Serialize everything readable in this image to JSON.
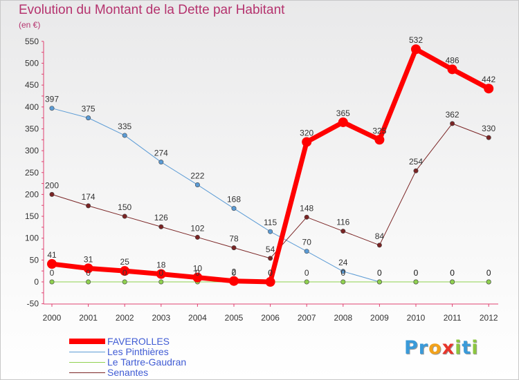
{
  "title": "Evolution du Montant de la Dette par Habitant",
  "unit_label": "(en €)",
  "logo": {
    "text": "Proxiti",
    "letters": [
      {
        "ch": "P",
        "color": "#3a9ad9"
      },
      {
        "ch": "r",
        "color": "#3a9ad9"
      },
      {
        "ch": "o",
        "color": "#f2a21b"
      },
      {
        "ch": "x",
        "color": "#e8352b"
      },
      {
        "ch": "i",
        "color": "#8cc63f"
      },
      {
        "ch": "t",
        "color": "#3a9ad9"
      },
      {
        "ch": "i",
        "color": "#8cc63f"
      }
    ]
  },
  "chart_data": {
    "type": "line",
    "title": "Evolution du Montant de la Dette par Habitant",
    "xlabel": "",
    "ylabel": "(en €)",
    "x": [
      2000,
      2001,
      2002,
      2003,
      2004,
      2005,
      2006,
      2007,
      2008,
      2009,
      2010,
      2011,
      2012
    ],
    "x_tick_labels": [
      "2000",
      "2001",
      "2002",
      "2003",
      "2004",
      "2005",
      "2006",
      "2007",
      "2008",
      "2009",
      "2010",
      "2011",
      "2012"
    ],
    "ylim": [
      -50,
      550
    ],
    "y_ticks": [
      -50,
      0,
      50,
      100,
      150,
      200,
      250,
      300,
      350,
      400,
      450,
      500,
      550
    ],
    "grid": false,
    "legend_position": "bottom-left",
    "series": [
      {
        "name": "Les Pinthières",
        "color": "#5b9bd5",
        "values": [
          397,
          375,
          335,
          274,
          222,
          168,
          115,
          70,
          24,
          0,
          0,
          0,
          0
        ],
        "labels": [
          "397",
          "375",
          "335",
          "274",
          "222",
          "168",
          "115",
          "70",
          "24",
          "0",
          "0",
          "0",
          "0"
        ]
      },
      {
        "name": "Le Tartre-Gaudran",
        "color": "#8fd14f",
        "values": [
          0,
          0,
          0,
          0,
          0,
          0,
          0,
          0,
          0,
          0,
          0,
          0,
          0
        ],
        "labels": [
          "0",
          "0",
          "0",
          "0",
          "0",
          "0",
          "0",
          "0",
          "0",
          "0",
          "0",
          "0",
          "0"
        ]
      },
      {
        "name": "Senantes",
        "color": "#7a2424",
        "values": [
          200,
          174,
          150,
          126,
          102,
          78,
          54,
          148,
          116,
          84,
          254,
          362,
          330
        ],
        "labels": [
          "200",
          "174",
          "150",
          "126",
          "102",
          "78",
          "54",
          "148",
          "116",
          "84",
          "254",
          "362",
          "330"
        ]
      },
      {
        "name": "FAVEROLLES",
        "color": "#ff0000",
        "values": [
          41,
          31,
          25,
          18,
          10,
          2,
          0,
          320,
          365,
          325,
          532,
          486,
          442
        ],
        "labels": [
          "41",
          "31",
          "25",
          "18",
          "10",
          "2",
          "0",
          "320",
          "365",
          "325",
          "532",
          "486",
          "442"
        ]
      }
    ]
  }
}
